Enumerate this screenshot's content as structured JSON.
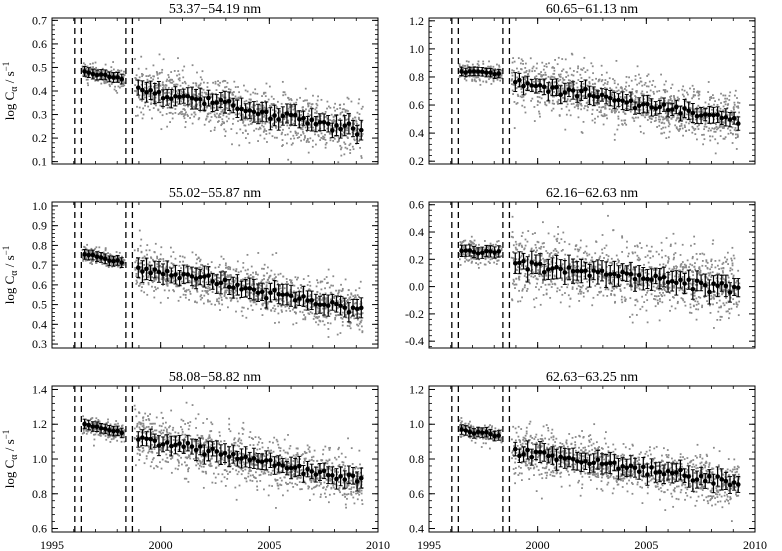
{
  "figure": {
    "xlabel_parts": {
      "log": "log C",
      "sub": "α",
      "unit": " / s",
      "sup": "−1"
    }
  },
  "chart_data": [
    {
      "type": "scatter",
      "title": "53.37−54.19 nm",
      "ylabel": "log Cα / s−1",
      "xlim": [
        1995,
        2010
      ],
      "ylim": [
        0.09,
        0.71
      ],
      "yticks": [
        "0.1",
        "0.2",
        "0.3",
        "0.4",
        "0.5",
        "0.6",
        "0.7"
      ],
      "ytick_values": [
        0.1,
        0.2,
        0.3,
        0.4,
        0.5,
        0.6,
        0.7
      ],
      "xticks": [
        "1995",
        "2000",
        "2005",
        "2010"
      ],
      "show_xticklabels": false,
      "dashed_lines_x": [
        1996.05,
        1996.35,
        1998.4,
        1998.7
      ],
      "segments": [
        {
          "x0": 1996.4,
          "x1": 1998.35,
          "y0": 0.485,
          "y1": 0.45
        },
        {
          "x0": 1998.8,
          "x1": 2009.3,
          "y0": 0.41,
          "y1": 0.23
        }
      ],
      "scatter_sigma": 0.055,
      "errorbar_halfwidth": 0.038,
      "series": [
        {
          "type": "scatter",
          "color": "#8a8a8a"
        },
        {
          "type": "errorbar",
          "color": "#000000"
        }
      ]
    },
    {
      "type": "scatter",
      "title": "60.65−61.13 nm",
      "ylabel": "",
      "xlim": [
        1995,
        2010
      ],
      "ylim": [
        0.18,
        1.22
      ],
      "yticks": [
        "0.2",
        "0.4",
        "0.6",
        "0.8",
        "1.0",
        "1.2"
      ],
      "ytick_values": [
        0.2,
        0.4,
        0.6,
        0.8,
        1.0,
        1.2
      ],
      "xticks": [
        "1995",
        "2000",
        "2005",
        "2010"
      ],
      "show_xticklabels": false,
      "dashed_lines_x": [
        1996.05,
        1996.35,
        1998.4,
        1998.7
      ],
      "segments": [
        {
          "x0": 1996.4,
          "x1": 1998.35,
          "y0": 0.845,
          "y1": 0.82
        },
        {
          "x0": 1998.8,
          "x1": 2009.3,
          "y0": 0.77,
          "y1": 0.49
        }
      ],
      "scatter_sigma": 0.09,
      "errorbar_halfwidth": 0.055,
      "series": [
        {
          "type": "scatter",
          "color": "#8a8a8a"
        },
        {
          "type": "errorbar",
          "color": "#000000"
        }
      ]
    },
    {
      "type": "scatter",
      "title": "55.02−55.87 nm",
      "ylabel": "log Cα / s−1",
      "xlim": [
        1995,
        2010
      ],
      "ylim": [
        0.28,
        1.02
      ],
      "yticks": [
        "0.3",
        "0.4",
        "0.5",
        "0.6",
        "0.7",
        "0.8",
        "0.9",
        "1.0"
      ],
      "ytick_values": [
        0.3,
        0.4,
        0.5,
        0.6,
        0.7,
        0.8,
        0.9,
        1.0
      ],
      "xticks": [
        "1995",
        "2000",
        "2005",
        "2010"
      ],
      "show_xticklabels": false,
      "dashed_lines_x": [
        1996.05,
        1996.35,
        1998.4,
        1998.7
      ],
      "segments": [
        {
          "x0": 1996.4,
          "x1": 1998.35,
          "y0": 0.76,
          "y1": 0.71
        },
        {
          "x0": 1998.8,
          "x1": 2009.3,
          "y0": 0.69,
          "y1": 0.47
        }
      ],
      "scatter_sigma": 0.06,
      "errorbar_halfwidth": 0.045,
      "series": [
        {
          "type": "scatter",
          "color": "#8a8a8a"
        },
        {
          "type": "errorbar",
          "color": "#000000"
        }
      ]
    },
    {
      "type": "scatter",
      "title": "62.16−62.63 nm",
      "ylabel": "",
      "xlim": [
        1995,
        2010
      ],
      "ylim": [
        -0.45,
        0.62
      ],
      "yticks": [
        "-0.4",
        "-0.2",
        "0.0",
        "0.2",
        "0.4",
        "0.6"
      ],
      "ytick_values": [
        -0.4,
        -0.2,
        0.0,
        0.2,
        0.4,
        0.6
      ],
      "xticks": [
        "1995",
        "2000",
        "2005",
        "2010"
      ],
      "show_xticklabels": false,
      "dashed_lines_x": [
        1996.05,
        1996.35,
        1998.4,
        1998.7
      ],
      "segments": [
        {
          "x0": 1996.4,
          "x1": 1998.35,
          "y0": 0.26,
          "y1": 0.25
        },
        {
          "x0": 1998.8,
          "x1": 2009.3,
          "y0": 0.17,
          "y1": 0.0
        }
      ],
      "scatter_sigma": 0.12,
      "errorbar_halfwidth": 0.075,
      "series": [
        {
          "type": "scatter",
          "color": "#8a8a8a"
        },
        {
          "type": "errorbar",
          "color": "#000000"
        }
      ]
    },
    {
      "type": "scatter",
      "title": "58.08−58.82 nm",
      "ylabel": "log Cα / s−1",
      "xlim": [
        1995,
        2010
      ],
      "ylim": [
        0.58,
        1.42
      ],
      "yticks": [
        "0.6",
        "0.8",
        "1.0",
        "1.2",
        "1.4"
      ],
      "ytick_values": [
        0.6,
        0.8,
        1.0,
        1.2,
        1.4
      ],
      "xticks": [
        "1995",
        "2000",
        "2005",
        "2010"
      ],
      "show_xticklabels": true,
      "dashed_lines_x": [
        1996.05,
        1996.35,
        1998.4,
        1998.7
      ],
      "segments": [
        {
          "x0": 1996.4,
          "x1": 1998.35,
          "y0": 1.2,
          "y1": 1.15
        },
        {
          "x0": 1998.8,
          "x1": 2009.3,
          "y0": 1.13,
          "y1": 0.87
        }
      ],
      "scatter_sigma": 0.075,
      "errorbar_halfwidth": 0.05,
      "series": [
        {
          "type": "scatter",
          "color": "#8a8a8a"
        },
        {
          "type": "errorbar",
          "color": "#000000"
        }
      ]
    },
    {
      "type": "scatter",
      "title": "62.63−63.25 nm",
      "ylabel": "",
      "xlim": [
        1995,
        2010
      ],
      "ylim": [
        0.38,
        1.22
      ],
      "yticks": [
        "0.4",
        "0.6",
        "0.8",
        "1.0",
        "1.2"
      ],
      "ytick_values": [
        0.4,
        0.6,
        0.8,
        1.0,
        1.2
      ],
      "xticks": [
        "1995",
        "2000",
        "2005",
        "2010"
      ],
      "show_xticklabels": true,
      "dashed_lines_x": [
        1996.05,
        1996.35,
        1998.4,
        1998.7
      ],
      "segments": [
        {
          "x0": 1996.4,
          "x1": 1998.35,
          "y0": 0.97,
          "y1": 0.93
        },
        {
          "x0": 1998.8,
          "x1": 2009.3,
          "y0": 0.85,
          "y1": 0.66
        }
      ],
      "scatter_sigma": 0.07,
      "errorbar_halfwidth": 0.05,
      "series": [
        {
          "type": "scatter",
          "color": "#8a8a8a"
        },
        {
          "type": "errorbar",
          "color": "#000000"
        }
      ]
    }
  ]
}
